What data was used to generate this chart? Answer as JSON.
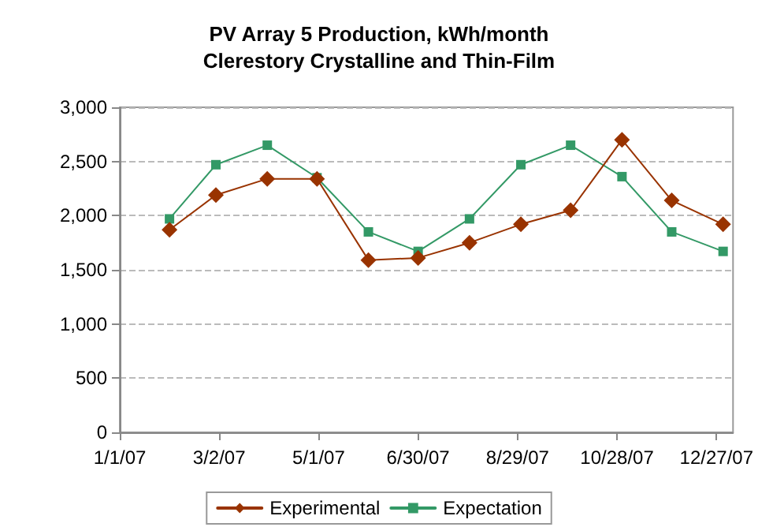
{
  "chart_data": {
    "type": "line",
    "title": "PV Array 5 Production, kWh/month",
    "subtitle": "Clerestory Crystalline and Thin-Film",
    "x": [
      "2007-01-31",
      "2007-02-28",
      "2007-03-31",
      "2007-04-30",
      "2007-05-31",
      "2007-06-30",
      "2007-07-31",
      "2007-08-31",
      "2007-09-30",
      "2007-10-31",
      "2007-11-30",
      "2007-12-31"
    ],
    "series": [
      {
        "name": "Experimental",
        "color": "#993300",
        "marker": "diamond",
        "values": [
          1870,
          2190,
          2340,
          2340,
          1590,
          1610,
          1750,
          1920,
          2050,
          2700,
          2140,
          1920
        ]
      },
      {
        "name": "Expectation",
        "color": "#339966",
        "marker": "square",
        "values": [
          1970,
          2470,
          2650,
          2350,
          1850,
          1670,
          1970,
          2470,
          2650,
          2360,
          1850,
          1670
        ]
      }
    ],
    "xlim": [
      "2007-01-01",
      "2008-01-06"
    ],
    "xticks": [
      {
        "value": "2007-01-01",
        "label": "1/1/07"
      },
      {
        "value": "2007-03-02",
        "label": "3/2/07"
      },
      {
        "value": "2007-05-01",
        "label": "5/1/07"
      },
      {
        "value": "2007-06-30",
        "label": "6/30/07"
      },
      {
        "value": "2007-08-29",
        "label": "8/29/07"
      },
      {
        "value": "2007-10-28",
        "label": "10/28/07"
      },
      {
        "value": "2007-12-27",
        "label": "12/27/07"
      }
    ],
    "ylim": [
      0,
      3000
    ],
    "yticks": [
      {
        "value": 0,
        "label": "0"
      },
      {
        "value": 500,
        "label": "500"
      },
      {
        "value": 1000,
        "label": "1,000"
      },
      {
        "value": 1500,
        "label": "1,500"
      },
      {
        "value": 2000,
        "label": "2,000"
      },
      {
        "value": 2500,
        "label": "2,500"
      },
      {
        "value": 3000,
        "label": "3,000"
      }
    ],
    "grid": "y",
    "legend": "bottom",
    "line_style": "solid"
  }
}
